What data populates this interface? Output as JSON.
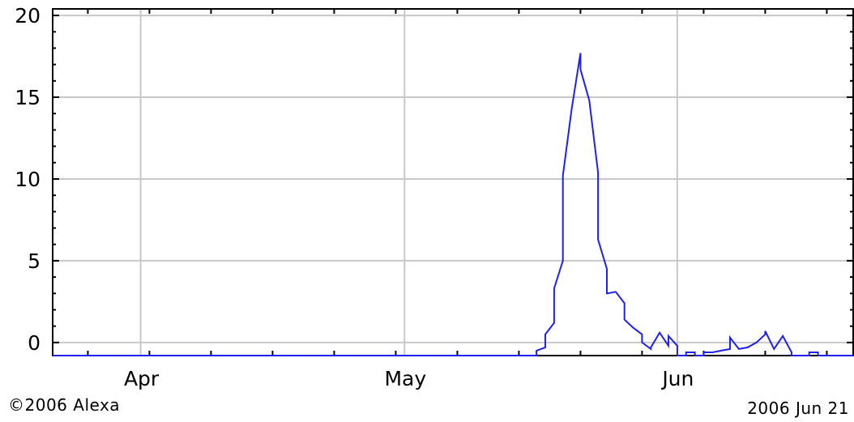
{
  "chart_data": {
    "type": "line",
    "title": "",
    "xlabel": "",
    "ylabel": "",
    "ylim": [
      -0.8,
      20.4
    ],
    "xlim": [
      "2006-03-22",
      "2006-06-21"
    ],
    "y_ticks": [
      0,
      5,
      10,
      15,
      20
    ],
    "x_ticks": [
      {
        "date": "2006-04-01",
        "label": "Apr"
      },
      {
        "date": "2006-05-01",
        "label": "May"
      },
      {
        "date": "2006-06-01",
        "label": "Jun"
      }
    ],
    "grid": true,
    "legend": "none",
    "series": [
      {
        "color": "#2020ee",
        "points": [
          [
            "2006-03-22",
            -0.8
          ],
          [
            "2006-05-15",
            -0.8
          ],
          [
            "2006-05-16",
            -0.8
          ],
          [
            "2006-05-16",
            -0.5
          ],
          [
            "2006-05-17",
            -0.3
          ],
          [
            "2006-05-17",
            0.5
          ],
          [
            "2006-05-18",
            1.2
          ],
          [
            "2006-05-18",
            3.3
          ],
          [
            "2006-05-19",
            5.0
          ],
          [
            "2006-05-19",
            10.2
          ],
          [
            "2006-05-20",
            14.3
          ],
          [
            "2006-05-21",
            17.7
          ],
          [
            "2006-05-21",
            16.7
          ],
          [
            "2006-05-22",
            14.8
          ],
          [
            "2006-05-23",
            10.4
          ],
          [
            "2006-05-23",
            6.3
          ],
          [
            "2006-05-24",
            4.5
          ],
          [
            "2006-05-24",
            3.0
          ],
          [
            "2006-05-25",
            3.1
          ],
          [
            "2006-05-26",
            2.4
          ],
          [
            "2006-05-26",
            1.4
          ],
          [
            "2006-05-27",
            0.9
          ],
          [
            "2006-05-28",
            0.5
          ],
          [
            "2006-05-28",
            0.0
          ],
          [
            "2006-05-29",
            -0.4
          ],
          [
            "2006-05-29",
            -0.3
          ],
          [
            "2006-05-30",
            0.6
          ],
          [
            "2006-05-31",
            -0.2
          ],
          [
            "2006-05-31",
            0.4
          ],
          [
            "2006-06-01",
            -0.2
          ],
          [
            "2006-06-01",
            -0.8
          ],
          [
            "2006-06-02",
            -0.8
          ],
          [
            "2006-06-02",
            -0.6
          ],
          [
            "2006-06-03",
            -0.6
          ],
          [
            "2006-06-03",
            -0.8
          ],
          [
            "2006-06-04",
            -0.8
          ],
          [
            "2006-06-04",
            -0.6
          ],
          [
            "2006-06-05",
            -0.6
          ],
          [
            "2006-06-06",
            -0.5
          ],
          [
            "2006-06-07",
            -0.4
          ],
          [
            "2006-06-07",
            0.3
          ],
          [
            "2006-06-08",
            -0.4
          ],
          [
            "2006-06-09",
            -0.3
          ],
          [
            "2006-06-10",
            0.0
          ],
          [
            "2006-06-11",
            0.5
          ],
          [
            "2006-06-11",
            0.7
          ],
          [
            "2006-06-12",
            -0.4
          ],
          [
            "2006-06-13",
            0.4
          ],
          [
            "2006-06-14",
            -0.6
          ],
          [
            "2006-06-14",
            -0.8
          ],
          [
            "2006-06-16",
            -0.8
          ],
          [
            "2006-06-16",
            -0.6
          ],
          [
            "2006-06-17",
            -0.6
          ],
          [
            "2006-06-17",
            -0.8
          ],
          [
            "2006-06-21",
            -0.8
          ]
        ]
      }
    ]
  },
  "footer": {
    "copyright": "©2006 Alexa",
    "date": "2006 Jun 21"
  },
  "colors": {
    "line": "#2020ee",
    "grid": "#c8c8c8",
    "frame": "#000000"
  }
}
